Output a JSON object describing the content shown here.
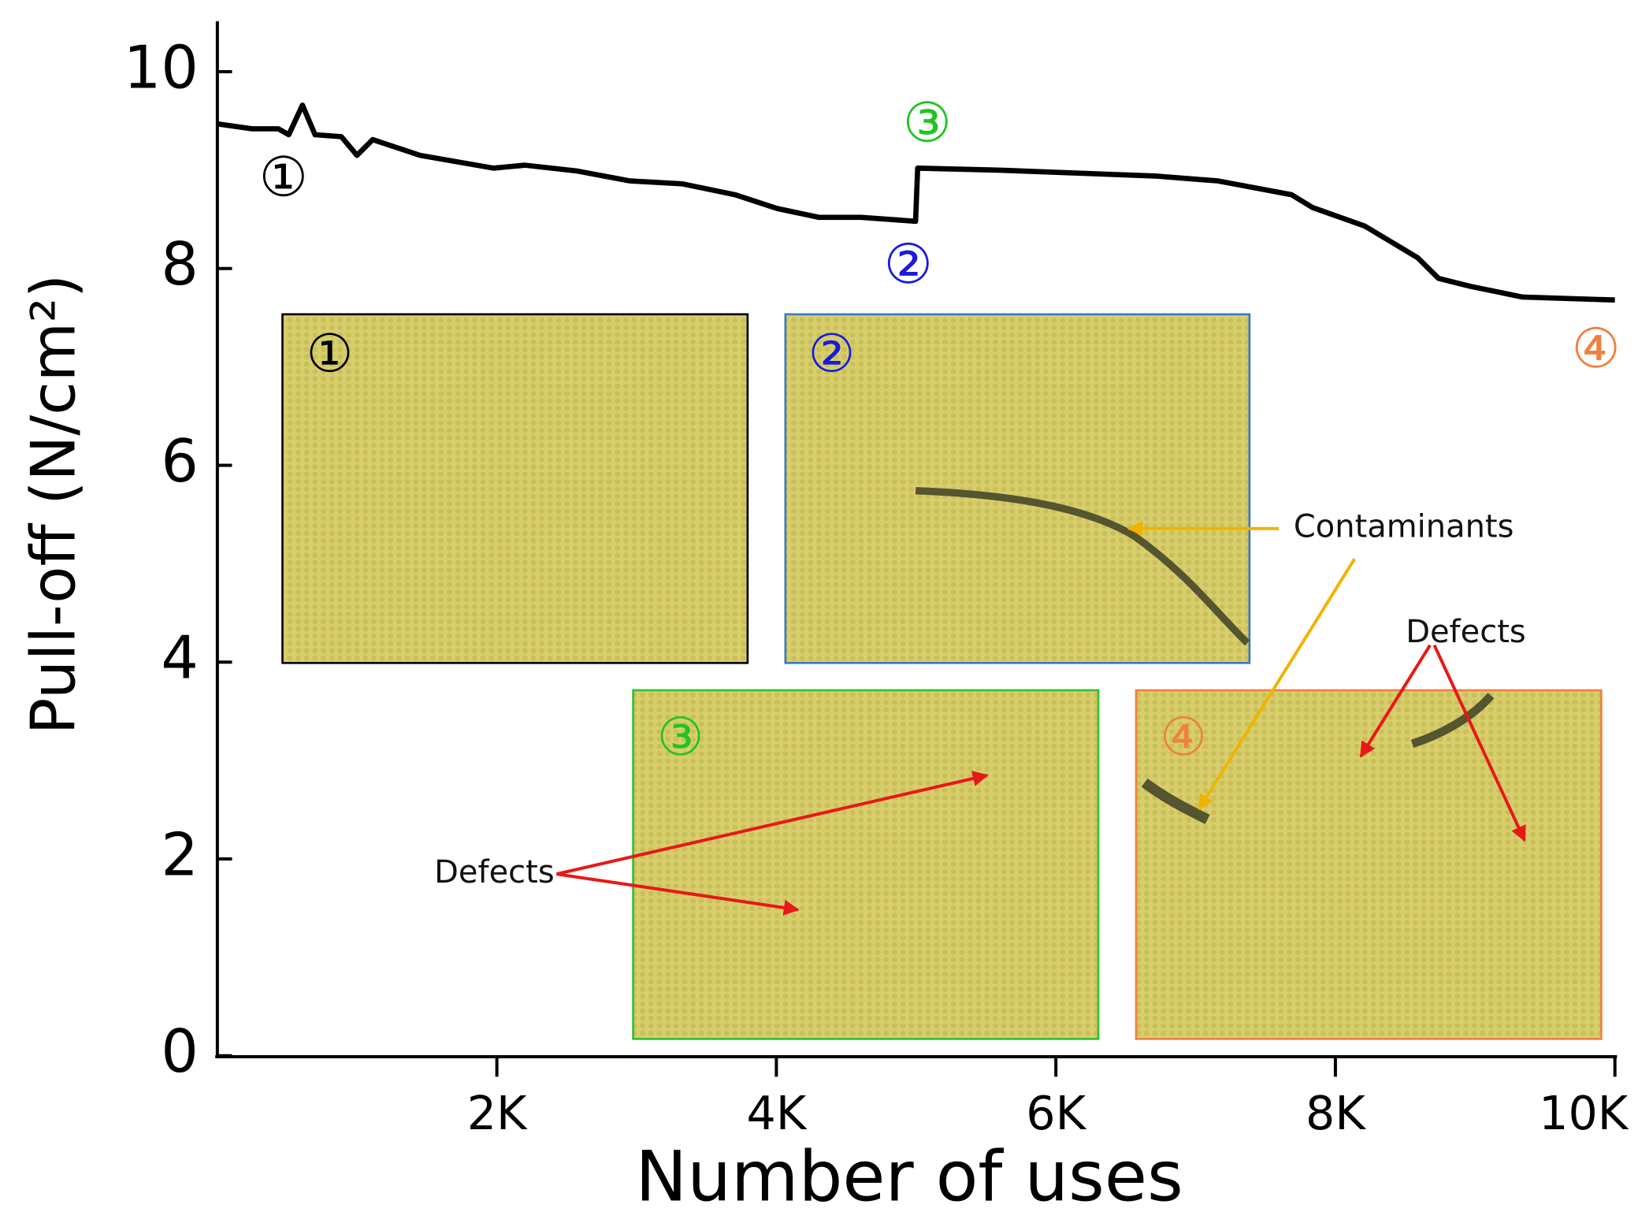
{
  "chart_data": {
    "type": "line",
    "xlabel": "Number of uses",
    "ylabel": "Pull-off (N/cm²)",
    "xlim": [
      0,
      10000
    ],
    "ylim": [
      0,
      10
    ],
    "xticks": [
      {
        "value": 2000,
        "label": "2K"
      },
      {
        "value": 4000,
        "label": "4K"
      },
      {
        "value": 6000,
        "label": "6K"
      },
      {
        "value": 8000,
        "label": "8K"
      },
      {
        "value": 10000,
        "label": "10K"
      }
    ],
    "yticks": [
      0,
      2,
      4,
      6,
      8,
      10
    ],
    "series": [
      {
        "color": "#000000",
        "x": [
          0,
          248,
          436,
          511,
          609,
          699,
          887,
          999,
          1112,
          1450,
          1976,
          2201,
          2577,
          2953,
          3329,
          3704,
          4005,
          4305,
          4606,
          4996,
          5011,
          5582,
          6709,
          7160,
          7686,
          7836,
          8212,
          8588,
          8738,
          8963,
          9339,
          10000
        ],
        "values": [
          9.47,
          9.42,
          9.42,
          9.36,
          9.66,
          9.36,
          9.34,
          9.15,
          9.31,
          9.15,
          9.02,
          9.05,
          8.99,
          8.89,
          8.86,
          8.75,
          8.61,
          8.52,
          8.52,
          8.48,
          9.02,
          9.0,
          8.94,
          8.89,
          8.75,
          8.62,
          8.43,
          8.11,
          7.9,
          7.82,
          7.71,
          7.68
        ]
      }
    ],
    "annotations": [
      {
        "text": "①",
        "color": "#000000"
      },
      {
        "text": "②",
        "color": "#1a1adc"
      },
      {
        "text": "③",
        "color": "#22c322"
      },
      {
        "text": "④",
        "color": "#f08040"
      }
    ],
    "insets": [
      {
        "label": "①",
        "color": "#000000"
      },
      {
        "label": "②",
        "color": "#1a1adc"
      },
      {
        "label": "③",
        "color": "#22c322"
      },
      {
        "label": "④",
        "color": "#f08040"
      }
    ],
    "callouts": [
      "Contaminants",
      "Defects",
      "Defects"
    ]
  }
}
